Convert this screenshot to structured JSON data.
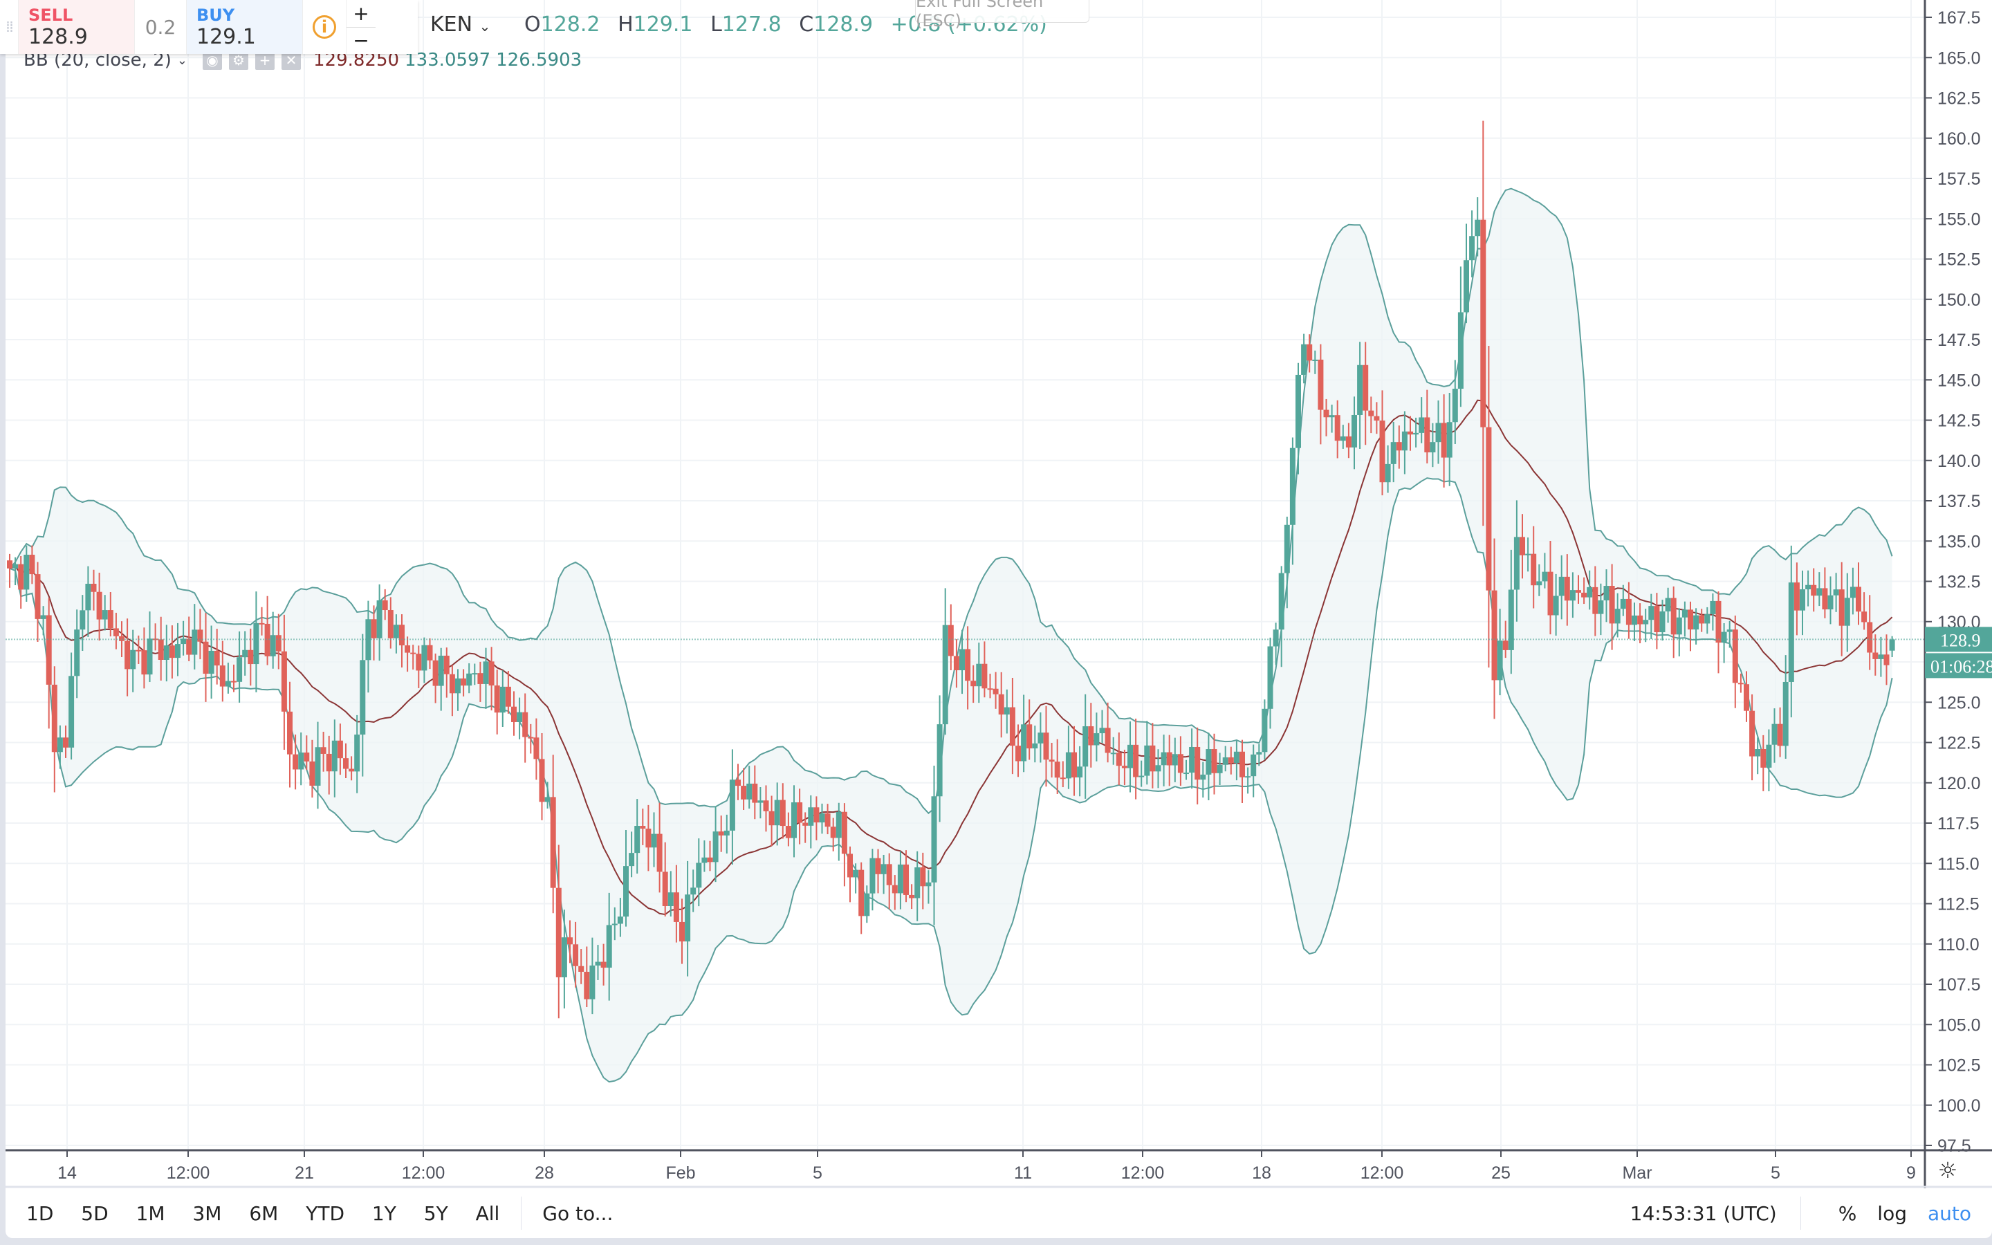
{
  "trade_panel": {
    "sell_label": "SELL",
    "sell_price": "128.9",
    "spread": "0.2",
    "buy_label": "BUY",
    "buy_price": "129.1",
    "info_icon": "i",
    "zoom_in": "+",
    "zoom_out": "−"
  },
  "header": {
    "symbol": "KEN",
    "ohlc": {
      "o_label": "O",
      "o": "128.2",
      "h_label": "H",
      "h": "129.1",
      "l_label": "L",
      "l": "127.8",
      "c_label": "C",
      "c": "128.9",
      "change": "+0.8 (+0.62%)"
    },
    "exit_fullscreen": "Exit Full Screen (ESC)"
  },
  "indicator": {
    "name": "BB (20, close, 2)",
    "basis": "129.8250",
    "upper": "133.0597",
    "lower": "126.5903",
    "icons": [
      "eye-icon",
      "settings-icon",
      "plus-icon",
      "close-icon"
    ]
  },
  "price_axis": {
    "labels": [
      "167.5",
      "165.0",
      "162.5",
      "160.0",
      "157.5",
      "155.0",
      "152.5",
      "150.0",
      "147.5",
      "145.0",
      "142.5",
      "140.0",
      "137.5",
      "135.0",
      "132.5",
      "130.0",
      "127.5",
      "125.0",
      "122.5",
      "120.0",
      "117.5",
      "115.0",
      "112.5",
      "110.0",
      "107.5",
      "105.0",
      "102.5",
      "100.0",
      "97.5"
    ],
    "last_price": "128.9",
    "countdown": "01:06:28"
  },
  "time_axis": {
    "ticks": [
      {
        "label": "14",
        "x": 97
      },
      {
        "label": "12:00",
        "x": 272
      },
      {
        "label": "21",
        "x": 440
      },
      {
        "label": "12:00",
        "x": 612
      },
      {
        "label": "28",
        "x": 787
      },
      {
        "label": "Feb",
        "x": 984
      },
      {
        "label": "5",
        "x": 1182
      },
      {
        "label": "11",
        "x": 1479
      },
      {
        "label": "12:00",
        "x": 1652
      },
      {
        "label": "18",
        "x": 1824
      },
      {
        "label": "12:00",
        "x": 1998
      },
      {
        "label": "25",
        "x": 2170
      },
      {
        "label": "Mar",
        "x": 2367
      },
      {
        "label": "5",
        "x": 2567
      },
      {
        "label": "9",
        "x": 2763
      }
    ]
  },
  "bottom_bar": {
    "ranges": [
      "1D",
      "5D",
      "1M",
      "3M",
      "6M",
      "YTD",
      "1Y",
      "5Y",
      "All"
    ],
    "goto": "Go to...",
    "time": "14:53:31 (UTC)",
    "percent": "%",
    "log": "log",
    "auto": "auto"
  },
  "colors": {
    "up": "#53a69a",
    "down": "#e0625a",
    "bb_line": "#5b9f9b",
    "bb_fill": "#eef4f5",
    "basis": "#8b3535",
    "grid": "#f0f3f6",
    "axis": "#50535e",
    "accent": "#3d8ff0"
  },
  "chart_data": {
    "type": "candlestick",
    "title": "KEN",
    "indicator": "Bollinger Bands (20, close, 2)",
    "ylim": [
      97.5,
      167.5
    ],
    "ytick_step": 2.5,
    "x_labels": [
      "14",
      "12:00",
      "21",
      "12:00",
      "28",
      "Feb",
      "5",
      "11",
      "12:00",
      "18",
      "12:00",
      "25",
      "Mar",
      "5",
      "9"
    ],
    "candle_count": 337,
    "close_keypoints": [
      [
        0,
        132.8
      ],
      [
        3,
        133.5
      ],
      [
        6,
        130
      ],
      [
        8,
        122
      ],
      [
        10,
        123
      ],
      [
        13,
        132
      ],
      [
        16,
        131
      ],
      [
        19,
        129
      ],
      [
        22,
        127.5
      ],
      [
        26,
        128.5
      ],
      [
        29,
        128
      ],
      [
        32,
        129
      ],
      [
        35,
        128
      ],
      [
        39,
        126
      ],
      [
        42,
        128
      ],
      [
        45,
        129.5
      ],
      [
        48,
        128
      ],
      [
        50,
        121.5
      ],
      [
        54,
        121
      ],
      [
        58,
        122
      ],
      [
        61,
        120.5
      ],
      [
        64,
        130
      ],
      [
        67,
        130.5
      ],
      [
        71,
        128
      ],
      [
        75,
        127.5
      ],
      [
        80,
        126
      ],
      [
        84,
        127
      ],
      [
        88,
        125
      ],
      [
        91,
        124
      ],
      [
        94,
        121.5
      ],
      [
        96,
        118
      ],
      [
        98,
        109
      ],
      [
        100,
        110
      ],
      [
        103,
        107
      ],
      [
        105,
        109
      ],
      [
        107,
        110
      ],
      [
        110,
        114
      ],
      [
        112,
        117.5
      ],
      [
        115,
        116
      ],
      [
        118,
        112
      ],
      [
        120,
        111
      ],
      [
        123,
        115
      ],
      [
        126,
        116
      ],
      [
        130,
        120
      ],
      [
        133,
        119
      ],
      [
        136,
        118
      ],
      [
        139,
        117.5
      ],
      [
        143,
        118
      ],
      [
        146,
        117.5
      ],
      [
        148,
        117
      ],
      [
        150,
        115
      ],
      [
        152,
        112
      ],
      [
        154,
        115
      ],
      [
        157,
        114
      ],
      [
        160,
        113.5
      ],
      [
        164,
        114
      ],
      [
        165,
        119
      ],
      [
        167,
        129
      ],
      [
        170,
        127
      ],
      [
        173,
        126.5
      ],
      [
        176,
        125.5
      ],
      [
        180,
        122
      ],
      [
        183,
        123
      ],
      [
        187,
        120.5
      ],
      [
        190,
        121
      ],
      [
        194,
        123.5
      ],
      [
        197,
        121.5
      ],
      [
        202,
        121
      ],
      [
        206,
        121.5
      ],
      [
        210,
        121
      ],
      [
        214,
        121
      ],
      [
        218,
        121.5
      ],
      [
        222,
        120.5
      ],
      [
        224,
        125
      ],
      [
        226,
        130
      ],
      [
        228,
        136
      ],
      [
        229,
        141
      ],
      [
        231,
        148
      ],
      [
        233,
        145
      ],
      [
        236,
        142
      ],
      [
        239,
        141
      ],
      [
        241,
        145
      ],
      [
        243,
        143
      ],
      [
        245,
        139.5
      ],
      [
        248,
        141
      ],
      [
        250,
        142
      ],
      [
        253,
        141.5
      ],
      [
        256,
        141
      ],
      [
        258,
        144
      ],
      [
        259,
        149.5
      ],
      [
        261,
        154.5
      ],
      [
        262,
        155
      ],
      [
        263,
        141
      ],
      [
        264,
        133
      ],
      [
        265,
        126.5
      ],
      [
        267,
        129
      ],
      [
        269,
        135
      ],
      [
        272,
        133
      ],
      [
        275,
        131.5
      ],
      [
        278,
        132
      ],
      [
        282,
        131.5
      ],
      [
        286,
        131
      ],
      [
        291,
        130
      ],
      [
        295,
        130.5
      ],
      [
        300,
        130
      ],
      [
        304,
        130.5
      ],
      [
        307,
        128.5
      ],
      [
        309,
        126
      ],
      [
        311,
        122
      ],
      [
        313,
        121.5
      ],
      [
        316,
        123.5
      ],
      [
        317,
        126
      ],
      [
        318,
        131.5
      ],
      [
        321,
        132
      ],
      [
        324,
        131.5
      ],
      [
        327,
        131
      ],
      [
        330,
        131.5
      ],
      [
        332,
        128
      ],
      [
        334,
        127.5
      ],
      [
        336,
        128.9
      ]
    ],
    "last": {
      "open": 128.2,
      "high": 129.1,
      "low": 127.8,
      "close": 128.9
    }
  }
}
